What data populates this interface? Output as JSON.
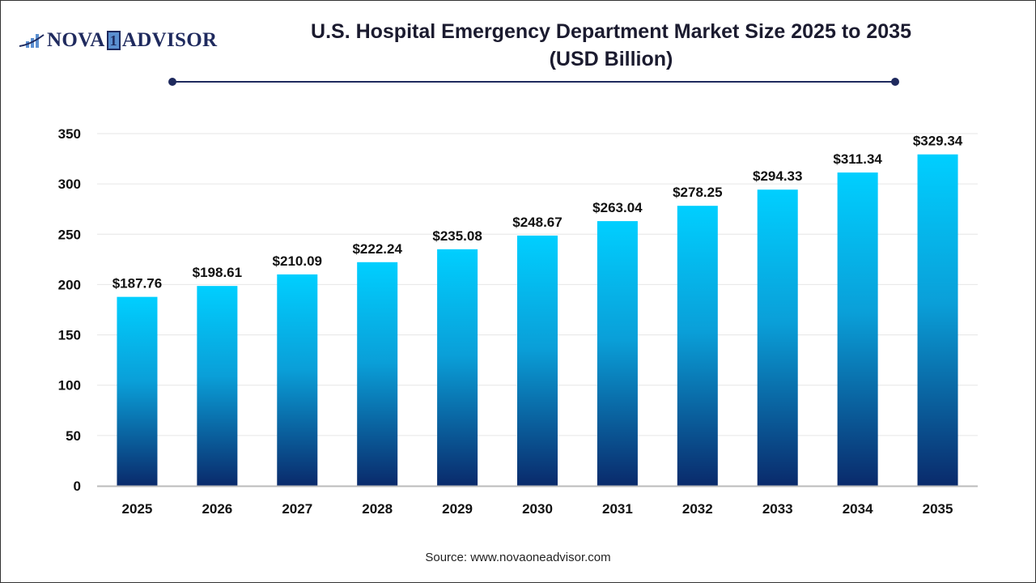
{
  "logo": {
    "text_left": "NOVA",
    "text_mid": "1",
    "text_right": "ADVISOR"
  },
  "title_line1": "U.S. Hospital Emergency Department Market Size 2025 to 2035",
  "title_line2": "(USD Billion)",
  "source": "Source: www.novaoneadvisor.com",
  "colors": {
    "bar_top": "#00cfff",
    "bar_bottom": "#0a2a6b",
    "title_rule": "#1f2a5e"
  },
  "chart_data": {
    "type": "bar",
    "title": "U.S. Hospital Emergency Department Market Size 2025 to 2035 (USD Billion)",
    "categories": [
      "2025",
      "2026",
      "2027",
      "2028",
      "2029",
      "2030",
      "2031",
      "2032",
      "2033",
      "2034",
      "2035"
    ],
    "values": [
      187.76,
      198.61,
      210.09,
      222.24,
      235.08,
      248.67,
      263.04,
      278.25,
      294.33,
      311.34,
      329.34
    ],
    "data_labels": [
      "$187.76",
      "$198.61",
      "$210.09",
      "$222.24",
      "$235.08",
      "$248.67",
      "$263.04",
      "$278.25",
      "$294.33",
      "$311.34",
      "$329.34"
    ],
    "ylim": [
      0,
      350
    ],
    "yticks": [
      0,
      50,
      100,
      150,
      200,
      250,
      300,
      350
    ],
    "grid": true,
    "xlabel": "",
    "ylabel": ""
  }
}
